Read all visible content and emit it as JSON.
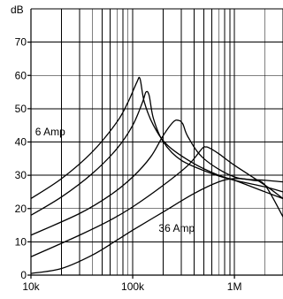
{
  "chart_data": {
    "type": "line",
    "title": "",
    "xlabel": "",
    "ylabel": "dB",
    "x_scale": "log",
    "xlim": [
      10000,
      3000000
    ],
    "ylim": [
      0,
      80
    ],
    "grid": true,
    "x_tick_labels": [
      {
        "value": 10000,
        "label": "10k"
      },
      {
        "value": 100000,
        "label": "100k"
      },
      {
        "value": 1000000,
        "label": "1M"
      }
    ],
    "y_tick_labels": [
      {
        "value": 0,
        "label": "0"
      },
      {
        "value": 10,
        "label": "10"
      },
      {
        "value": 20,
        "label": "20"
      },
      {
        "value": 30,
        "label": "30"
      },
      {
        "value": 40,
        "label": "40"
      },
      {
        "value": 50,
        "label": "50"
      },
      {
        "value": 60,
        "label": "60"
      },
      {
        "value": 70,
        "label": "70"
      }
    ],
    "annotations": [
      {
        "text": "6 Amp",
        "x": 11000,
        "y": 42
      },
      {
        "text": "36 Amp",
        "x": 180000,
        "y": 13
      }
    ],
    "series": [
      {
        "x": [
          10000,
          20000,
          40000,
          70000,
          90000,
          110000,
          118000,
          130000,
          160000,
          220000,
          400000,
          700000,
          1000000,
          2000000,
          3000000
        ],
        "y": [
          23,
          29,
          37,
          46,
          52,
          58,
          59,
          52,
          45,
          39,
          33.5,
          30,
          28.5,
          25,
          23
        ]
      },
      {
        "x": [
          10000,
          20000,
          40000,
          70000,
          100000,
          125000,
          135000,
          145000,
          160000,
          200000,
          300000,
          600000,
          1000000,
          2000000,
          3000000
        ],
        "y": [
          18,
          23.5,
          30.5,
          38,
          45,
          52,
          55,
          54,
          47,
          40,
          34.5,
          30.5,
          28.5,
          26.5,
          25
        ]
      },
      {
        "x": [
          10000,
          30000,
          60000,
          100000,
          150000,
          200000,
          250000,
          280000,
          310000,
          350000,
          500000,
          1000000,
          2000000,
          3000000
        ],
        "y": [
          12,
          18.5,
          24,
          29.5,
          35.5,
          42,
          46,
          46.5,
          45.5,
          41.5,
          35,
          29.5,
          28.5,
          28
        ]
      },
      {
        "x": [
          10000,
          30000,
          60000,
          100000,
          200000,
          350000,
          480000,
          520000,
          560000,
          700000,
          1000000,
          2000000,
          3000000
        ],
        "y": [
          5.5,
          12,
          16.5,
          20.5,
          27,
          33,
          38,
          38.5,
          38.3,
          36.5,
          33,
          27,
          23
        ]
      },
      {
        "x": [
          10000,
          20000,
          40000,
          70000,
          100000,
          200000,
          400000,
          700000,
          1000000,
          1500000,
          2000000,
          3000000
        ],
        "y": [
          0.5,
          2,
          6,
          10.5,
          13.5,
          19,
          24.5,
          28,
          29,
          28.5,
          27,
          17.5
        ]
      }
    ]
  }
}
